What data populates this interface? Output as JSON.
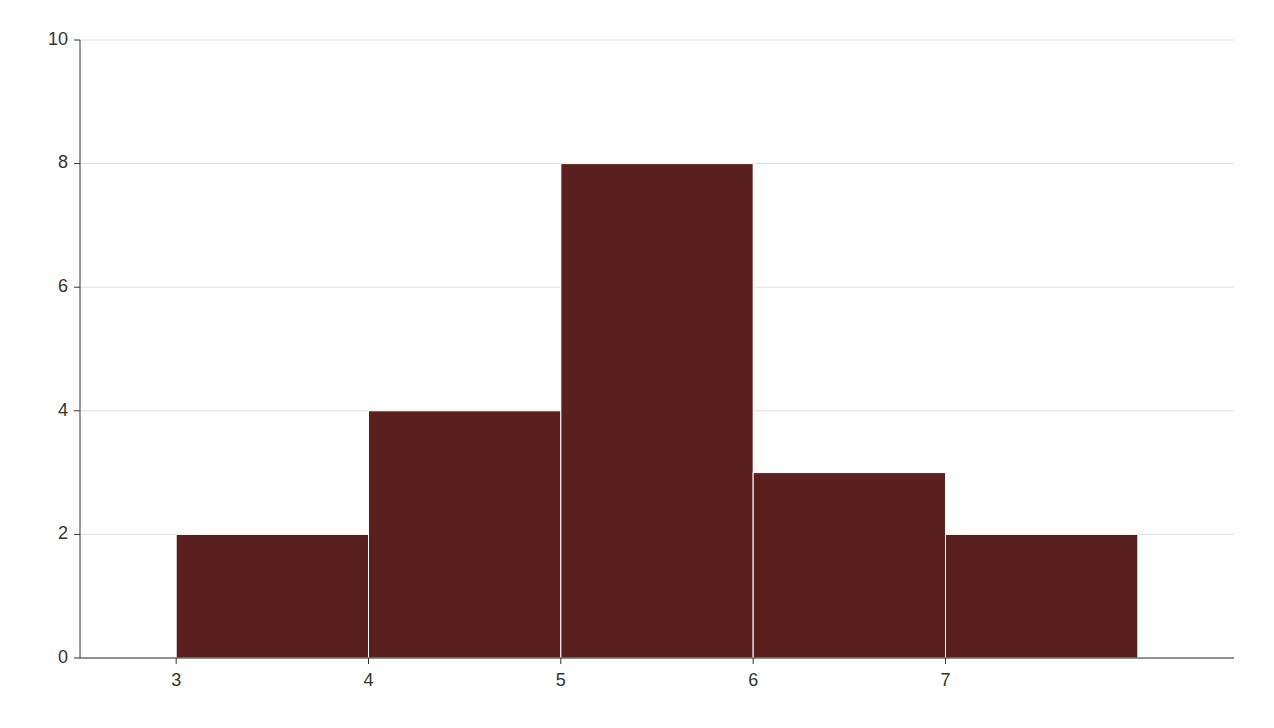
{
  "chart_data": {
    "type": "histogram",
    "bins": [
      3,
      4,
      5,
      6,
      7,
      8
    ],
    "values": [
      2,
      4,
      8,
      3,
      2
    ],
    "color": "#5a2020",
    "xlim": [
      2.5,
      8.5
    ],
    "ylim": [
      0,
      10
    ],
    "xticks": [
      3,
      4,
      5,
      6,
      7
    ],
    "yticks": [
      0,
      2,
      4,
      6,
      8,
      10
    ],
    "grid": true
  }
}
